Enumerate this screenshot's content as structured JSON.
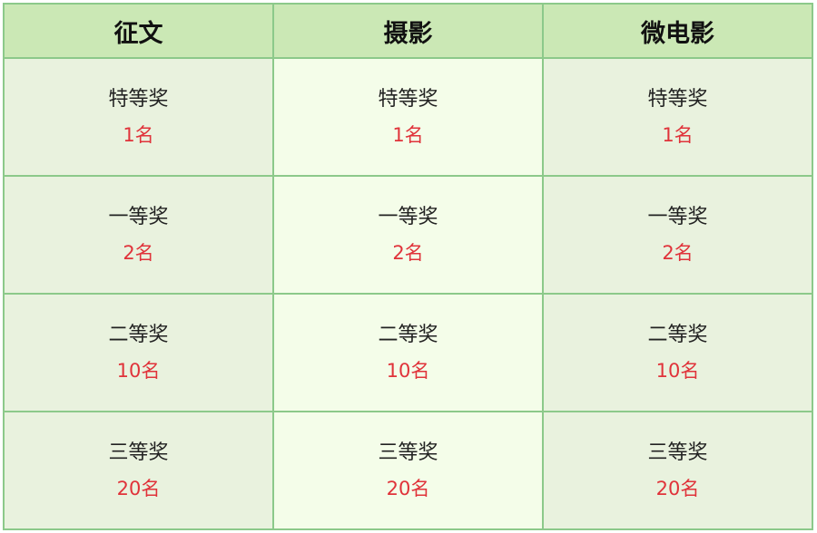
{
  "headers": [
    "征文",
    "摄影",
    "微电影"
  ],
  "rows": [
    {
      "level": "特等奖",
      "count": "1名"
    },
    {
      "level": "一等奖",
      "count": "2名"
    },
    {
      "level": "二等奖",
      "count": "10名"
    },
    {
      "level": "三等奖",
      "count": "20名"
    }
  ],
  "colors": {
    "header": "#cbe8b5",
    "cell": "#e9f2de",
    "cell_mid": "#f4fde9",
    "border": "#8cc98a",
    "count": "#e0333a"
  }
}
